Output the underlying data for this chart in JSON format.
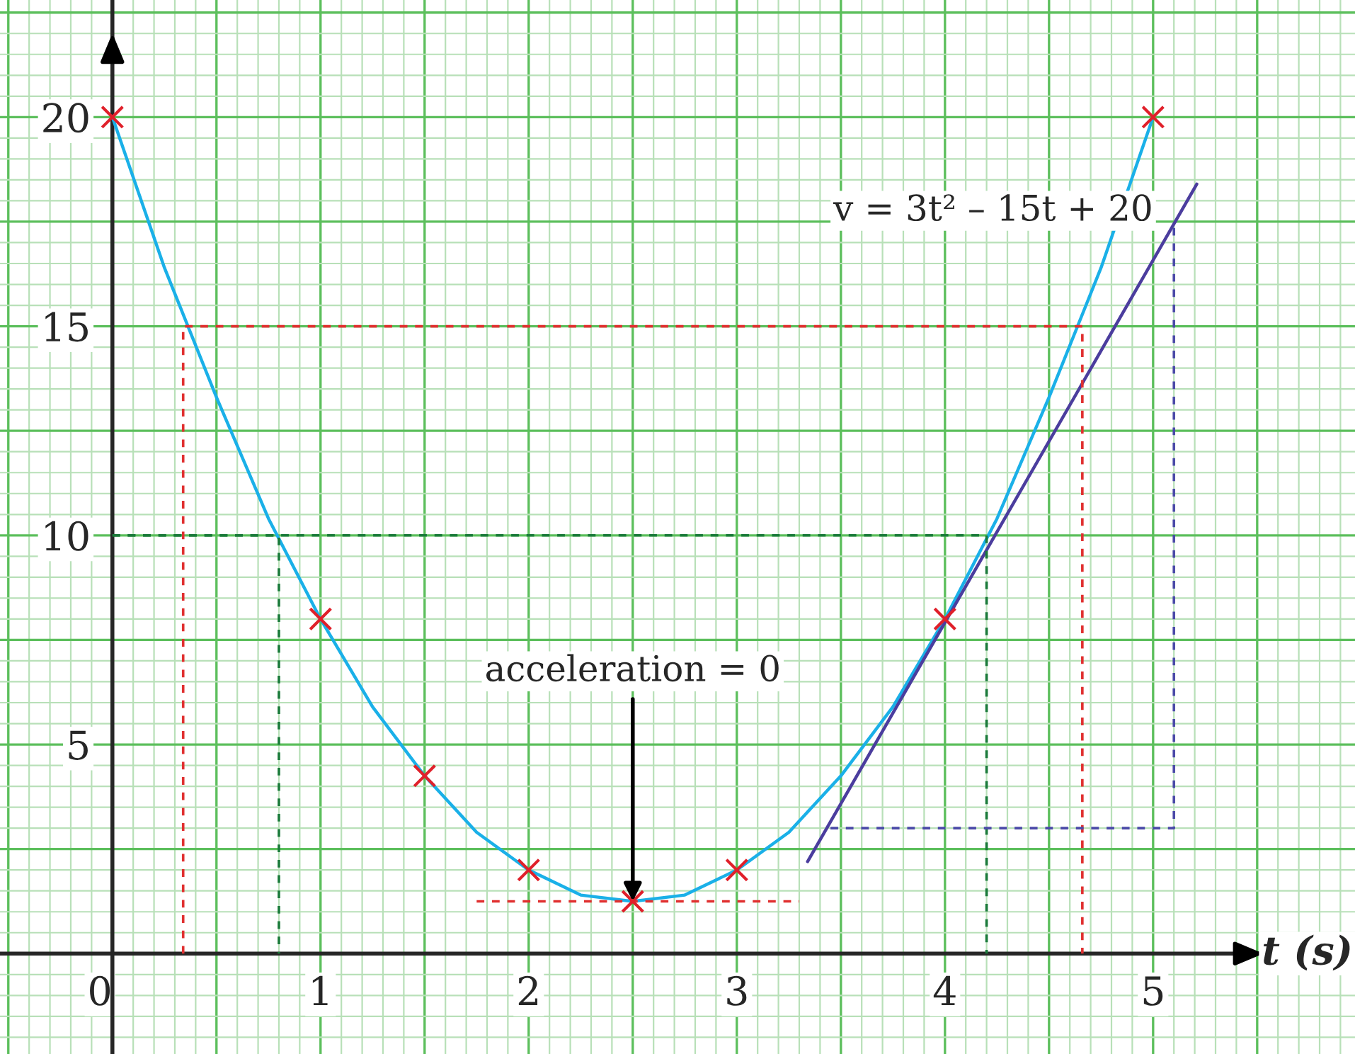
{
  "chart_data": {
    "type": "line",
    "xlabel": "t (s)",
    "xlim": [
      -0.54,
      5.97
    ],
    "ylim": [
      -2.4,
      22.8
    ],
    "xticks": [
      0,
      1,
      2,
      3,
      4,
      5
    ],
    "yticks": [
      5,
      10,
      15,
      20
    ],
    "grid": true,
    "annotations": [
      "v = 3t² – 15t + 20",
      {
        "text": "acceleration = 0",
        "x": 2.5,
        "y": 1.25
      }
    ],
    "series": [
      {
        "color": "#1ab0e8",
        "line_style": "solid",
        "x": [
          0,
          0.25,
          0.5,
          0.75,
          1,
          1.25,
          1.5,
          1.75,
          2,
          2.25,
          2.5,
          2.75,
          3,
          3.25,
          3.5,
          3.75,
          4,
          4.25,
          4.5,
          4.75,
          5
        ],
        "values": [
          20,
          16.4,
          13.3,
          10.4,
          8,
          5.9,
          4.25,
          2.9,
          2,
          1.4,
          1.25,
          1.4,
          2,
          2.9,
          4.25,
          5.9,
          8,
          10.4,
          13.3,
          16.4,
          20
        ]
      },
      {
        "type": "line",
        "color": "#4b3d9e",
        "line_style": "solid",
        "x": [
          3.34,
          5.21
        ],
        "values": [
          2.2,
          18.4
        ]
      },
      {
        "type": "line",
        "color": "#e03030",
        "line_style": "dashed",
        "x": [
          0.34,
          0.34,
          4.66,
          4.66
        ],
        "values": [
          0,
          15,
          15,
          0
        ]
      },
      {
        "type": "line",
        "color": "#1a7a3a",
        "line_style": "dashed",
        "x": [
          0,
          0.8,
          0.8
        ],
        "values": [
          10,
          10,
          0
        ]
      },
      {
        "type": "line",
        "color": "#1a7a3a",
        "line_style": "dashed",
        "x": [
          0,
          4.2,
          4.2
        ],
        "values": [
          10,
          10,
          0
        ]
      },
      {
        "type": "line",
        "color": "#e03030",
        "line_style": "dashed",
        "x": [
          1.75,
          3.3
        ],
        "values": [
          1.25,
          1.25
        ]
      },
      {
        "type": "line",
        "color": "#4b4aa8",
        "line_style": "dashed",
        "x": [
          3.45,
          5.1,
          5.1
        ],
        "values": [
          3,
          3,
          17.5
        ]
      },
      {
        "type": "scatter",
        "color": "#e0202a",
        "marker": "cross",
        "x": [
          0,
          1,
          1.5,
          2,
          2.5,
          3,
          4,
          5
        ],
        "values": [
          20,
          8,
          4.25,
          2,
          1.25,
          2,
          8,
          20
        ]
      }
    ]
  }
}
